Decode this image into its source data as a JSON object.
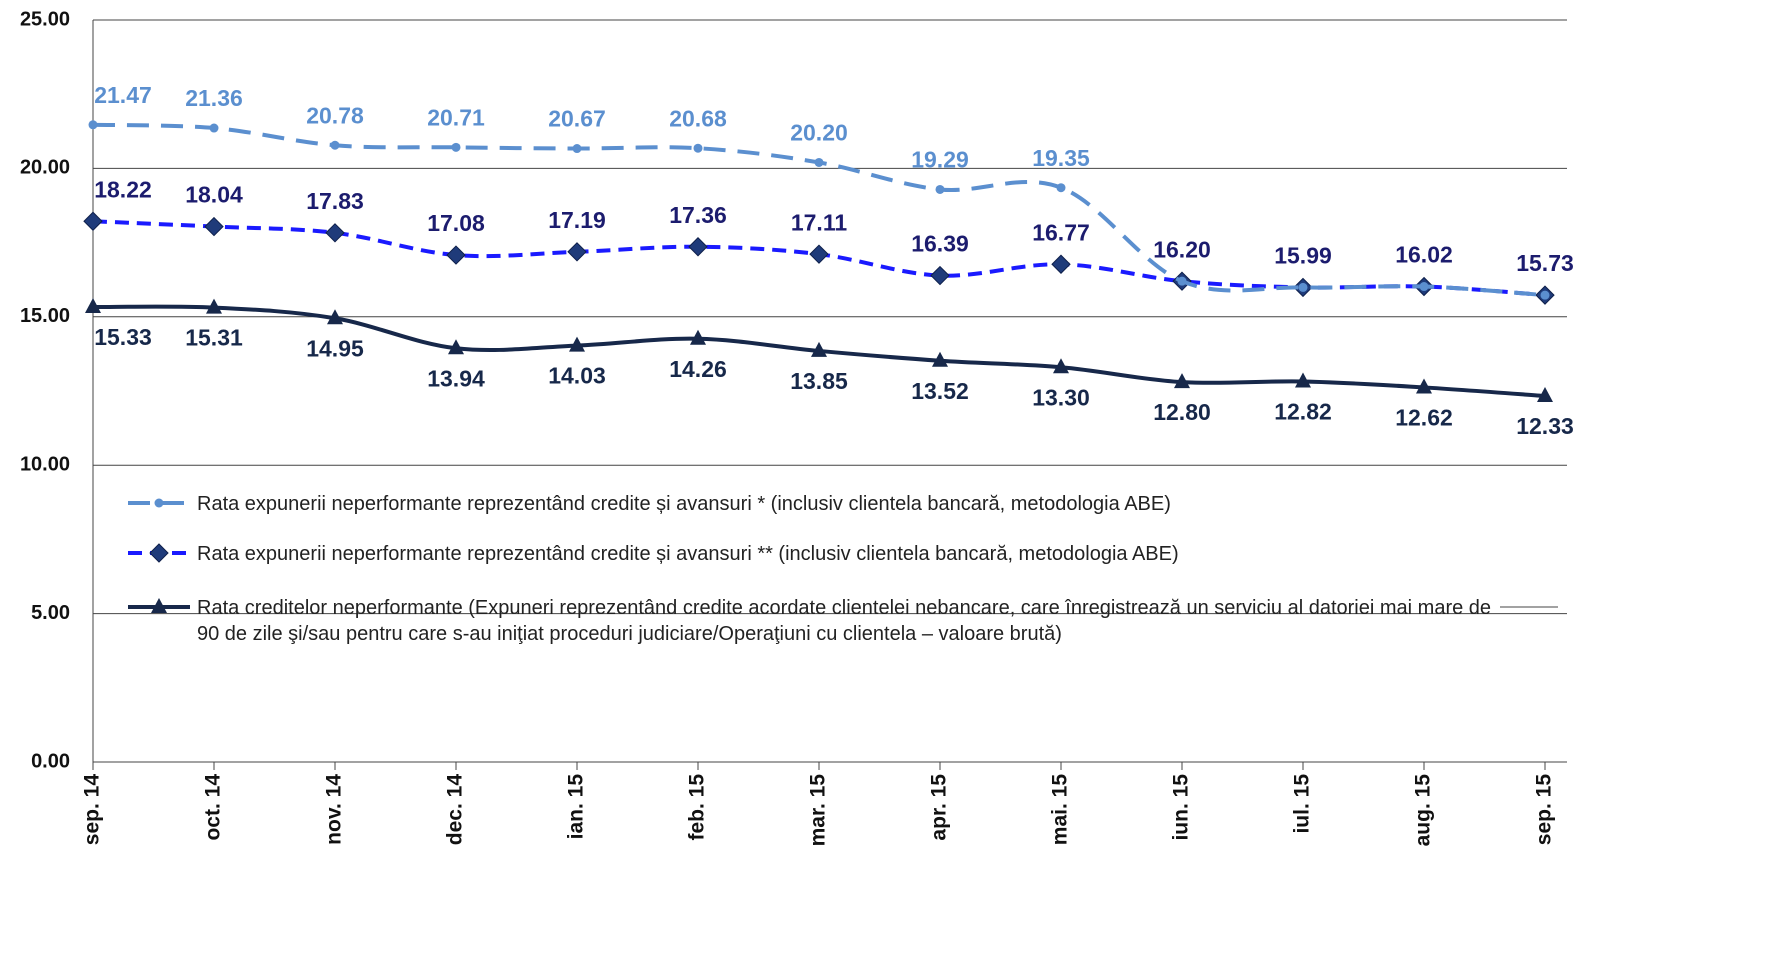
{
  "chart_data": {
    "type": "line",
    "categories": [
      "sep. 14",
      "oct. 14",
      "nov. 14",
      "dec. 14",
      "ian. 15",
      "feb. 15",
      "mar. 15",
      "apr. 15",
      "mai. 15",
      "iun. 15",
      "iul. 15",
      "aug. 15",
      "sep. 15"
    ],
    "series": [
      {
        "name": "Rata expunerii neperformante reprezentând credite și avansuri * (inclusiv clientela bancară, metodologia ABE)",
        "color": "#5b8fcf",
        "dash": "22,12",
        "marker": "circle",
        "label_color": "#5b8fcf",
        "values": [
          21.47,
          21.36,
          20.78,
          20.71,
          20.67,
          20.68,
          20.2,
          19.29,
          19.35,
          16.2,
          15.99,
          16.02,
          15.73
        ],
        "value_labels": [
          "21.47",
          "21.36",
          "20.78",
          "20.71",
          "20.67",
          "20.68",
          "20.20",
          "19.29",
          "19.35",
          null,
          null,
          null,
          null
        ]
      },
      {
        "name": "Rata expunerii neperformante reprezentând credite și avansuri ** (inclusiv clientela bancară, metodologia ABE)",
        "color": "#1a1aff",
        "dash": "14,8",
        "marker": "diamond",
        "label_color": "#1c1c6e",
        "values": [
          18.22,
          18.04,
          17.83,
          17.08,
          17.19,
          17.36,
          17.11,
          16.39,
          16.77,
          16.2,
          15.99,
          16.02,
          15.73
        ],
        "value_labels": [
          "18.22",
          "18.04",
          "17.83",
          "17.08",
          "17.19",
          "17.36",
          "17.11",
          "16.39",
          "16.77",
          "16.20",
          "15.99",
          "16.02",
          "15.73"
        ]
      },
      {
        "name": "Rata creditelor neperformante (Expuneri reprezentând credite acordate clientelei nebancare, care înregistrează un serviciu al datoriei mai mare de 90 de zile şi/sau pentru care s-au iniţiat proceduri judiciare/Operaţiuni cu clientela – valoare brută)",
        "color": "#17284a",
        "dash": "",
        "marker": "triangle",
        "label_color": "#17284a",
        "values": [
          15.33,
          15.31,
          14.95,
          13.94,
          14.03,
          14.26,
          13.85,
          13.52,
          13.3,
          12.8,
          12.82,
          12.62,
          12.33
        ],
        "value_labels": [
          "15.33",
          "15.31",
          "14.95",
          "13.94",
          "14.03",
          "14.26",
          "13.85",
          "13.52",
          "13.30",
          "12.80",
          "12.82",
          "12.62",
          "12.33"
        ]
      }
    ],
    "ylim": [
      0,
      25
    ],
    "yticks": [
      {
        "value": 0,
        "label": "0.00"
      },
      {
        "value": 5,
        "label": "5.00"
      },
      {
        "value": 10,
        "label": "10.00"
      },
      {
        "value": 15,
        "label": "15.00"
      },
      {
        "value": 20,
        "label": "20.00"
      },
      {
        "value": 25,
        "label": "25.00"
      }
    ],
    "grid": true
  }
}
